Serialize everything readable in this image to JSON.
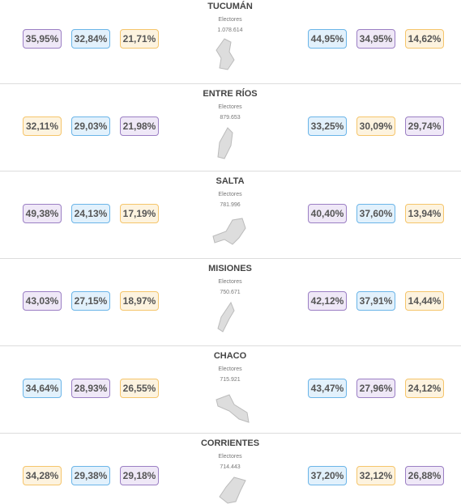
{
  "provinces": [
    {
      "name": "TUCUMÁN",
      "electors_label": "Electores",
      "electors": "1.078.614",
      "left": [
        {
          "text": "35,95%",
          "color": "purple"
        },
        {
          "text": "32,84%",
          "color": "blue"
        },
        {
          "text": "21,71%",
          "color": "orange"
        }
      ],
      "right": [
        {
          "text": "44,95%",
          "color": "blue"
        },
        {
          "text": "34,95%",
          "color": "purple"
        },
        {
          "text": "14,62%",
          "color": "orange"
        }
      ]
    },
    {
      "name": "ENTRE RÍOS",
      "electors_label": "Electores",
      "electors": "879.653",
      "left": [
        {
          "text": "32,11%",
          "color": "orange"
        },
        {
          "text": "29,03%",
          "color": "blue"
        },
        {
          "text": "21,98%",
          "color": "purple"
        }
      ],
      "right": [
        {
          "text": "33,25%",
          "color": "blue"
        },
        {
          "text": "30,09%",
          "color": "orange"
        },
        {
          "text": "29,74%",
          "color": "purple"
        }
      ]
    },
    {
      "name": "SALTA",
      "electors_label": "Electores",
      "electors": "781.996",
      "left": [
        {
          "text": "49,38%",
          "color": "purple"
        },
        {
          "text": "24,13%",
          "color": "blue"
        },
        {
          "text": "17,19%",
          "color": "orange"
        }
      ],
      "right": [
        {
          "text": "40,40%",
          "color": "purple"
        },
        {
          "text": "37,60%",
          "color": "blue"
        },
        {
          "text": "13,94%",
          "color": "orange"
        }
      ]
    },
    {
      "name": "MISIONES",
      "electors_label": "Electores",
      "electors": "750.671",
      "left": [
        {
          "text": "43,03%",
          "color": "purple"
        },
        {
          "text": "27,15%",
          "color": "blue"
        },
        {
          "text": "18,97%",
          "color": "orange"
        }
      ],
      "right": [
        {
          "text": "42,12%",
          "color": "purple"
        },
        {
          "text": "37,91%",
          "color": "blue"
        },
        {
          "text": "14,44%",
          "color": "orange"
        }
      ]
    },
    {
      "name": "CHACO",
      "electors_label": "Electores",
      "electors": "715.921",
      "left": [
        {
          "text": "34,64%",
          "color": "blue"
        },
        {
          "text": "28,93%",
          "color": "purple"
        },
        {
          "text": "26,55%",
          "color": "orange"
        }
      ],
      "right": [
        {
          "text": "43,47%",
          "color": "blue"
        },
        {
          "text": "27,96%",
          "color": "purple"
        },
        {
          "text": "24,12%",
          "color": "orange"
        }
      ]
    },
    {
      "name": "CORRIENTES",
      "electors_label": "Electores",
      "electors": "714.443",
      "left": [
        {
          "text": "34,28%",
          "color": "orange"
        },
        {
          "text": "29,38%",
          "color": "blue"
        },
        {
          "text": "29,18%",
          "color": "purple"
        }
      ],
      "right": [
        {
          "text": "37,20%",
          "color": "blue"
        },
        {
          "text": "32,12%",
          "color": "orange"
        },
        {
          "text": "26,88%",
          "color": "purple"
        }
      ]
    }
  ]
}
